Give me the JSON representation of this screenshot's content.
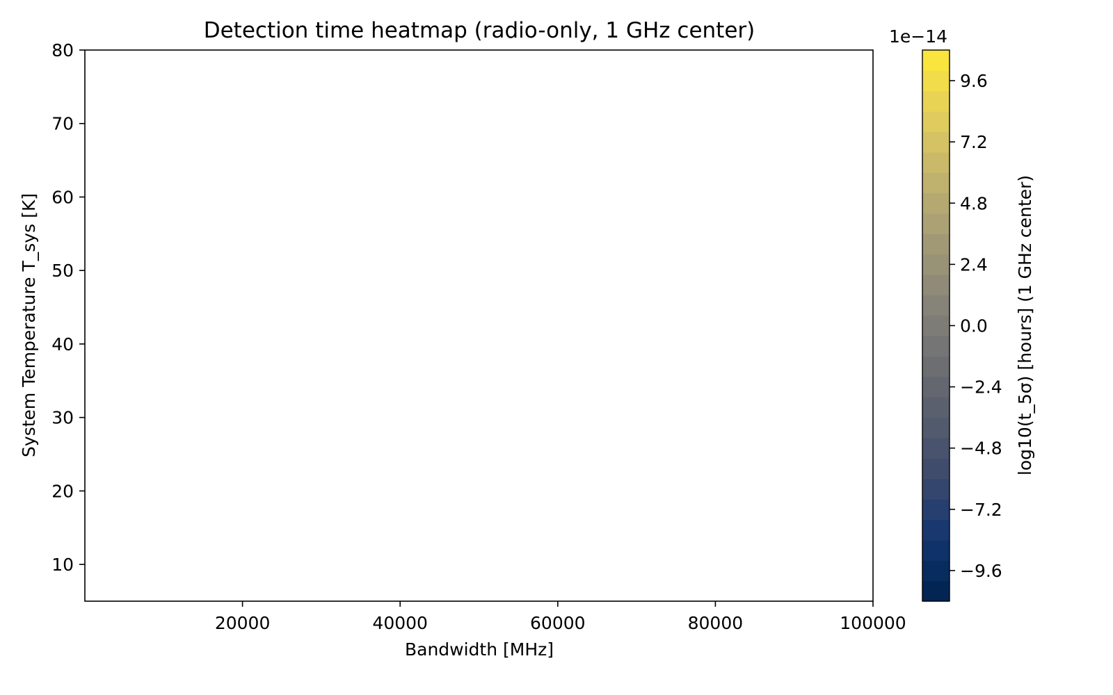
{
  "chart_data": {
    "type": "heatmap",
    "title": "Detection time heatmap (radio-only, 1 GHz center)",
    "xlabel": "Bandwidth [MHz]",
    "ylabel": "System Temperature T_sys [K]",
    "xlim": [
      0,
      100000
    ],
    "ylim": [
      5,
      80
    ],
    "x_ticks": [
      20000,
      40000,
      60000,
      80000,
      100000
    ],
    "x_tick_labels": [
      "20000",
      "40000",
      "60000",
      "80000",
      "100000"
    ],
    "y_ticks": [
      10,
      20,
      30,
      40,
      50,
      60,
      70,
      80
    ],
    "y_tick_labels": [
      "10",
      "20",
      "30",
      "40",
      "50",
      "60",
      "70",
      "80"
    ],
    "cells": [],
    "grid": false,
    "colorbar": {
      "label": "log10(t_5σ) [hours] (1 GHz center)",
      "multiplier_label": "1e−14",
      "range": [
        -10.8,
        10.8
      ],
      "ticks": [
        -9.6,
        -7.2,
        -4.8,
        -2.4,
        0.0,
        2.4,
        4.8,
        7.2,
        9.6
      ],
      "tick_labels": [
        "−9.6",
        "−7.2",
        "−4.8",
        "−2.4",
        "0.0",
        "2.4",
        "4.8",
        "7.2",
        "9.6"
      ],
      "levels": 27,
      "colormap": "cividis",
      "color_stops": [
        "#00224e",
        "#123570",
        "#3b496c",
        "#575d6d",
        "#707173",
        "#8a8779",
        "#a69d75",
        "#c4b56c",
        "#e4cf5b",
        "#fee838"
      ]
    }
  }
}
